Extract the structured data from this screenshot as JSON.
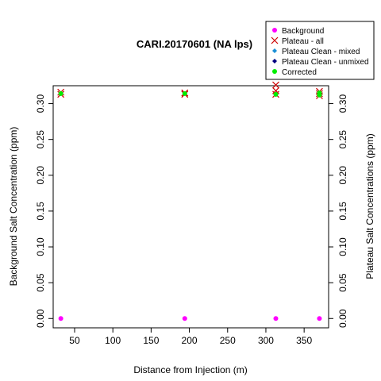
{
  "chart_data": {
    "type": "scatter",
    "title": "CARI.20170601 (NA lps)",
    "xlabel": "Distance from Injection (m)",
    "ylabel": "Background Salt Concentration (ppm)",
    "y2label": "Plateau Salt Concentrations (ppm)",
    "xlim": [
      22,
      382
    ],
    "ylim": [
      -0.013,
      0.325
    ],
    "xticks": [
      50,
      100,
      150,
      200,
      250,
      300,
      350
    ],
    "yticks": [
      0.0,
      0.05,
      0.1,
      0.15,
      0.2,
      0.25,
      0.3
    ],
    "ytick_labels": [
      "0.00",
      "0.05",
      "0.10",
      "0.15",
      "0.20",
      "0.25",
      "0.30"
    ],
    "legend_position": "top-right",
    "grid": false,
    "series": [
      {
        "name": "Background",
        "marker": "dot",
        "color": "#ff00ff",
        "x": [
          32,
          194,
          313,
          370
        ],
        "y": [
          0.0,
          0.0,
          0.0,
          0.0
        ]
      },
      {
        "name": "Plateau - all",
        "marker": "x",
        "color": "#cc0000",
        "x": [
          32,
          32,
          194,
          194,
          313,
          313,
          313,
          370,
          370,
          370
        ],
        "y": [
          0.313,
          0.316,
          0.313,
          0.315,
          0.313,
          0.318,
          0.326,
          0.311,
          0.314,
          0.317
        ]
      },
      {
        "name": "Plateau Clean - mixed",
        "marker": "diamond",
        "color": "#1a8fd6",
        "x": [
          32,
          194,
          313,
          370,
          370
        ],
        "y": [
          0.314,
          0.314,
          0.313,
          0.312,
          0.315
        ]
      },
      {
        "name": "Plateau Clean - unmixed",
        "marker": "diamond",
        "color": "#000080",
        "x": [
          32,
          194,
          313,
          370
        ],
        "y": [
          0.314,
          0.314,
          0.313,
          0.314
        ]
      },
      {
        "name": "Corrected",
        "marker": "dot",
        "color": "#00ee00",
        "x": [
          32,
          194,
          313,
          370,
          370
        ],
        "y": [
          0.314,
          0.314,
          0.313,
          0.312,
          0.315
        ]
      }
    ]
  }
}
